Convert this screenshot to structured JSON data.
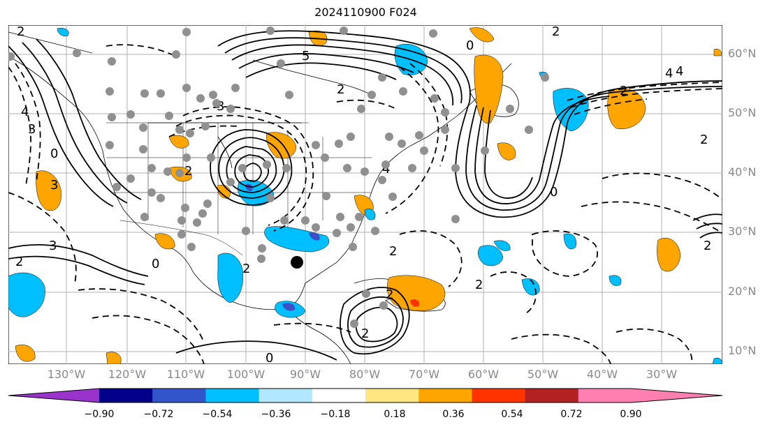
{
  "title": "2024110900 F024",
  "map": {
    "lat_labels": [
      "60°N",
      "50°N",
      "40°N",
      "30°N",
      "20°N",
      "10°N"
    ],
    "lon_labels": [
      "130°W",
      "120°W",
      "110°W",
      "100°W",
      "90°W",
      "80°W",
      "70°W",
      "60°W",
      "50°W",
      "40°W",
      "30°W"
    ],
    "contour_labels": [
      "2",
      "3",
      "4",
      "5",
      "0",
      "2",
      "3",
      "4",
      "2",
      "3",
      "4",
      "2",
      "0",
      "2",
      "3",
      "2",
      "2",
      "2",
      "0",
      "4",
      "2",
      "2",
      "0",
      "2",
      "2",
      "2",
      "0"
    ],
    "colors": {
      "pos_fill": "#ffa500",
      "neg_fill": "#00bfff",
      "strong_neg_fill": "#3c50c8",
      "strong_pos_fill": "#ff3300",
      "station_dot": "#909090",
      "center_dot": "#000000",
      "grid": "#b0b0b0"
    }
  },
  "colorbar": {
    "tick_labels": [
      "−0.90",
      "−0.72",
      "−0.54",
      "−0.36",
      "−0.18",
      "0.18",
      "0.36",
      "0.54",
      "0.72",
      "0.90"
    ],
    "colors": [
      "#9933cc",
      "#000088",
      "#3355cc",
      "#00bfff",
      "#b3e6ff",
      "#ffffff",
      "#ffe680",
      "#ffa500",
      "#ff3300",
      "#b22222",
      "#ff80b0",
      "#ff80b0"
    ]
  }
}
